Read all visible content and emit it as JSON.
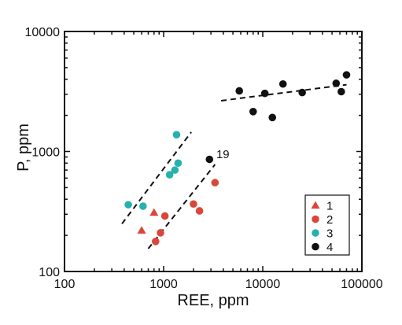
{
  "chart_data": {
    "type": "scatter",
    "title": "",
    "xlabel": "REE, ppm",
    "ylabel": "P, ppm",
    "x_scale": "log",
    "y_scale": "log",
    "xlim": [
      100,
      100000
    ],
    "ylim": [
      100,
      10000
    ],
    "x_ticks": [
      100,
      1000,
      10000,
      100000
    ],
    "x_tick_labels": [
      "100",
      "1000",
      "10000",
      "100000"
    ],
    "y_ticks": [
      100,
      1000,
      10000
    ],
    "y_tick_labels": [
      "100",
      "1000",
      "10000"
    ],
    "grid": false,
    "legend_position": "bottom-right",
    "series": [
      {
        "name": "1",
        "marker": "triangle",
        "color": "#d9473b",
        "points": [
          [
            600,
            220
          ],
          [
            800,
            310
          ]
        ]
      },
      {
        "name": "2",
        "marker": "circle",
        "color": "#d9473b",
        "points": [
          [
            830,
            178
          ],
          [
            930,
            210
          ],
          [
            1030,
            290
          ],
          [
            2000,
            365
          ],
          [
            2300,
            320
          ],
          [
            3300,
            550
          ]
        ]
      },
      {
        "name": "3",
        "marker": "circle",
        "color": "#27b1ad",
        "points": [
          [
            440,
            360
          ],
          [
            620,
            350
          ],
          [
            1150,
            640
          ],
          [
            1300,
            700
          ],
          [
            1400,
            800
          ],
          [
            1350,
            1380
          ]
        ]
      },
      {
        "name": "4",
        "marker": "circle",
        "color": "#111111",
        "points": [
          [
            2900,
            860
          ],
          [
            5800,
            3200
          ],
          [
            8000,
            2150
          ],
          [
            10500,
            3050
          ],
          [
            12500,
            1920
          ],
          [
            16000,
            3650
          ],
          [
            25000,
            3100
          ],
          [
            55000,
            3700
          ],
          [
            62000,
            3150
          ],
          [
            70000,
            4350
          ]
        ]
      }
    ],
    "trend_lines": [
      {
        "from": [
          380,
          250
        ],
        "to": [
          1900,
          1450
        ]
      },
      {
        "from": [
          700,
          155
        ],
        "to": [
          3300,
          780
        ]
      },
      {
        "from": [
          3800,
          2650
        ],
        "to": [
          70000,
          3600
        ]
      }
    ],
    "annotations": [
      {
        "text": "19",
        "x": 3400,
        "y": 880
      }
    ]
  }
}
